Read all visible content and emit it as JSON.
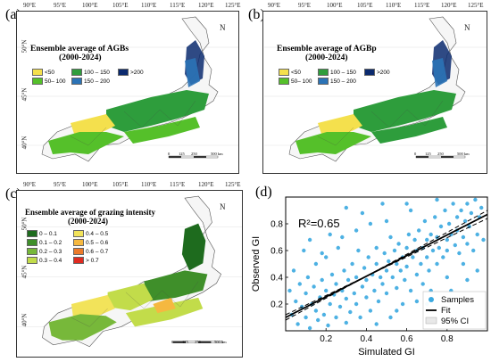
{
  "colors": {
    "lt50": "#f4e04d",
    "50_100": "#55c02a",
    "100_150": "#2e9d3c",
    "150_200": "#2b73b6",
    "gt200": "#0b2a6e",
    "gi_0_01": "#1e6b1e",
    "gi_01_02": "#3f8f2a",
    "gi_02_03": "#77b83a",
    "gi_03_04": "#c2dc4a",
    "gi_04_05": "#f2e35a",
    "gi_05_06": "#f5b840",
    "gi_06_07": "#ec7a2a",
    "gi_gt07": "#e02a20",
    "samples": "#3aa9e0",
    "fit": "#000000"
  },
  "lon_ticks": [
    "90°E",
    "95°E",
    "100°E",
    "105°E",
    "110°E",
    "115°E",
    "120°E",
    "125°E"
  ],
  "lat_ticks": [
    "50°N",
    "45°N",
    "40°N"
  ],
  "panel_a": {
    "label": "(a)",
    "title_line1": "Ensemble average of   AGBs",
    "title_line2": "(2000-2024)",
    "legend": [
      "<50",
      "100 – 150",
      ">200",
      "50– 100",
      "150 – 200"
    ]
  },
  "panel_b": {
    "label": "(b)",
    "title_line1": "Ensemble average of   AGBp",
    "title_line2": "(2000-2024)",
    "legend": [
      "<50",
      "100 – 150",
      ">200",
      "50– 100",
      "150 – 200"
    ]
  },
  "panel_c": {
    "label": "(c)",
    "title_line1": "Ensemble average of grazing intensity",
    "title_line2": "(2000-2024)",
    "legend": [
      "0 – 0.1",
      "0.4 – 0.5",
      "0.1 – 0.2",
      "0.5 – 0.6",
      "0.2 – 0.3",
      "0.6 – 0.7",
      "0.3 – 0.4",
      "> 0.7"
    ]
  },
  "scale_labels": [
    "0",
    "125",
    "250",
    "500 km"
  ],
  "north_symbol": "N",
  "panel_d": {
    "label": "(d)"
  },
  "chart_data": {
    "type": "scatter",
    "title": "",
    "xlabel": "Simulated GI",
    "ylabel": "Observed GI",
    "xlim": [
      0,
      1
    ],
    "ylim": [
      0,
      1
    ],
    "xticks": [
      "0.2",
      "0.4",
      "0.6",
      "0.8"
    ],
    "yticks": [
      "0.2",
      "0.4",
      "0.6",
      "0.8"
    ],
    "annotation": "R²=0.65",
    "legend": [
      "Samples",
      "Fit",
      "95% CI"
    ],
    "legend_position": "bottom-right",
    "fit": {
      "x": [
        0,
        1
      ],
      "y": [
        0.1,
        0.87
      ]
    },
    "ci_upper": {
      "x": [
        0,
        1
      ],
      "y": [
        0.08,
        0.9
      ]
    },
    "ci_lower": {
      "x": [
        0,
        1
      ],
      "y": [
        0.12,
        0.84
      ]
    },
    "series": [
      {
        "name": "Samples",
        "points": [
          [
            0.02,
            0.3
          ],
          [
            0.03,
            0.12
          ],
          [
            0.04,
            0.45
          ],
          [
            0.05,
            0.22
          ],
          [
            0.06,
            0.05
          ],
          [
            0.07,
            0.35
          ],
          [
            0.08,
            0.18
          ],
          [
            0.09,
            0.6
          ],
          [
            0.1,
            0.1
          ],
          [
            0.1,
            0.28
          ],
          [
            0.11,
            0.4
          ],
          [
            0.12,
            0.02
          ],
          [
            0.13,
            0.2
          ],
          [
            0.14,
            0.33
          ],
          [
            0.15,
            0.15
          ],
          [
            0.15,
            0.5
          ],
          [
            0.16,
            0.08
          ],
          [
            0.17,
            0.25
          ],
          [
            0.18,
            0.38
          ],
          [
            0.19,
            0.12
          ],
          [
            0.2,
            0.3
          ],
          [
            0.2,
            0.55
          ],
          [
            0.21,
            0.04
          ],
          [
            0.22,
            0.2
          ],
          [
            0.23,
            0.42
          ],
          [
            0.24,
            0.27
          ],
          [
            0.25,
            0.1
          ],
          [
            0.25,
            0.35
          ],
          [
            0.26,
            0.62
          ],
          [
            0.27,
            0.18
          ],
          [
            0.28,
            0.3
          ],
          [
            0.29,
            0.45
          ],
          [
            0.3,
            0.06
          ],
          [
            0.3,
            0.24
          ],
          [
            0.31,
            0.38
          ],
          [
            0.32,
            0.14
          ],
          [
            0.33,
            0.5
          ],
          [
            0.34,
            0.28
          ],
          [
            0.35,
            0.2
          ],
          [
            0.35,
            0.4
          ],
          [
            0.36,
            0.6
          ],
          [
            0.37,
            0.1
          ],
          [
            0.38,
            0.33
          ],
          [
            0.39,
            0.47
          ],
          [
            0.4,
            0.25
          ],
          [
            0.4,
            0.38
          ],
          [
            0.41,
            0.55
          ],
          [
            0.42,
            0.15
          ],
          [
            0.43,
            0.42
          ],
          [
            0.44,
            0.3
          ],
          [
            0.45,
            0.5
          ],
          [
            0.45,
            0.62
          ],
          [
            0.46,
            0.22
          ],
          [
            0.47,
            0.4
          ],
          [
            0.48,
            0.35
          ],
          [
            0.49,
            0.58
          ],
          [
            0.5,
            0.45
          ],
          [
            0.5,
            0.28
          ],
          [
            0.51,
            0.52
          ],
          [
            0.52,
            0.7
          ],
          [
            0.53,
            0.4
          ],
          [
            0.54,
            0.6
          ],
          [
            0.55,
            0.32
          ],
          [
            0.55,
            0.5
          ],
          [
            0.56,
            0.65
          ],
          [
            0.57,
            0.45
          ],
          [
            0.58,
            0.55
          ],
          [
            0.59,
            0.38
          ],
          [
            0.6,
            0.62
          ],
          [
            0.6,
            0.48
          ],
          [
            0.61,
            0.72
          ],
          [
            0.62,
            0.3
          ],
          [
            0.63,
            0.55
          ],
          [
            0.64,
            0.68
          ],
          [
            0.65,
            0.42
          ],
          [
            0.65,
            0.6
          ],
          [
            0.66,
            0.75
          ],
          [
            0.67,
            0.5
          ],
          [
            0.68,
            0.62
          ],
          [
            0.69,
            0.82
          ],
          [
            0.7,
            0.55
          ],
          [
            0.7,
            0.68
          ],
          [
            0.71,
            0.45
          ],
          [
            0.72,
            0.72
          ],
          [
            0.73,
            0.6
          ],
          [
            0.74,
            0.85
          ],
          [
            0.75,
            0.5
          ],
          [
            0.75,
            0.7
          ],
          [
            0.76,
            0.62
          ],
          [
            0.77,
            0.78
          ],
          [
            0.78,
            0.55
          ],
          [
            0.79,
            0.9
          ],
          [
            0.8,
            0.68
          ],
          [
            0.8,
            0.6
          ],
          [
            0.81,
            0.8
          ],
          [
            0.82,
            0.72
          ],
          [
            0.83,
            0.95
          ],
          [
            0.84,
            0.64
          ],
          [
            0.85,
            0.85
          ],
          [
            0.85,
            0.75
          ],
          [
            0.86,
            0.58
          ],
          [
            0.87,
            0.9
          ],
          [
            0.88,
            0.7
          ],
          [
            0.89,
            0.82
          ],
          [
            0.9,
            0.95
          ],
          [
            0.9,
            0.65
          ],
          [
            0.91,
            0.78
          ],
          [
            0.92,
            0.88
          ],
          [
            0.93,
            0.6
          ],
          [
            0.94,
            0.98
          ],
          [
            0.95,
            0.72
          ],
          [
            0.96,
            0.85
          ],
          [
            0.97,
            0.92
          ],
          [
            0.98,
            0.68
          ],
          [
            0.35,
            0.75
          ],
          [
            0.42,
            0.8
          ],
          [
            0.5,
            0.82
          ],
          [
            0.28,
            0.7
          ],
          [
            0.62,
            0.9
          ],
          [
            0.45,
            0.05
          ],
          [
            0.55,
            0.15
          ],
          [
            0.65,
            0.22
          ],
          [
            0.72,
            0.3
          ],
          [
            0.8,
            0.4
          ],
          [
            0.88,
            0.5
          ],
          [
            0.95,
            0.45
          ],
          [
            0.58,
            0.2
          ],
          [
            0.68,
            0.35
          ],
          [
            0.18,
            0.58
          ],
          [
            0.22,
            0.72
          ],
          [
            0.12,
            0.68
          ],
          [
            0.38,
            0.88
          ],
          [
            0.48,
            0.95
          ],
          [
            0.3,
            0.92
          ],
          [
            0.75,
            0.98
          ],
          [
            0.6,
            0.95
          ],
          [
            0.7,
            0.2
          ],
          [
            0.82,
            0.3
          ],
          [
            0.9,
            0.38
          ],
          [
            0.52,
            0.1
          ]
        ]
      }
    ]
  }
}
